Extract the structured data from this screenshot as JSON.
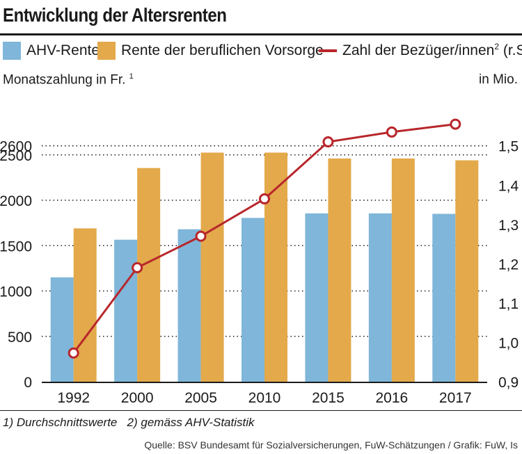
{
  "title": "Entwicklung der Altersrenten",
  "legend": {
    "ahv": "AHV-Rente",
    "bvg": "Rente der beruflichen Vorsorge",
    "count": "Zahl der Bezüger/innen",
    "count_sup": "2",
    "count_suffix": "(r.S.)"
  },
  "left_axis_label": "Monatszahlung in Fr.",
  "left_axis_label_sup": "1",
  "right_axis_label": "in Mio.",
  "footnote": "1) Durchschnittswerte   2) gemäss AHV-Statistik",
  "source": "Quelle: BSV Bundesamt für Sozialversicherungen, FuW-Schätzungen / Grafik: FuW, Is",
  "colors": {
    "ahv": "#7fb6d9",
    "bvg": "#e3a94b",
    "line": "#b8262b",
    "grid": "#1a1a1a"
  },
  "chart_data": {
    "type": "bar",
    "categories": [
      "1992",
      "2000",
      "2005",
      "2010",
      "2015",
      "2016",
      "2017"
    ],
    "series": [
      {
        "name": "AHV-Rente",
        "axis": "left",
        "values": [
          1150,
          1565,
          1680,
          1805,
          1855,
          1855,
          1850
        ]
      },
      {
        "name": "Rente der beruflichen Vorsorge",
        "axis": "left",
        "values": [
          1690,
          2355,
          2525,
          2525,
          2460,
          2460,
          2440
        ]
      },
      {
        "name": "Zahl der Bezüger/innen",
        "type": "line",
        "axis": "right",
        "values": [
          0.973,
          1.19,
          1.27,
          1.365,
          1.51,
          1.535,
          1.555
        ]
      }
    ],
    "y_left": {
      "min": 0,
      "max": 2600,
      "ticks": [
        0,
        500,
        1000,
        1500,
        2000,
        2500,
        2600
      ]
    },
    "y_right": {
      "min": 0.9,
      "max": 1.5,
      "ticks": [
        "0,9",
        "1,0",
        "1,1",
        "1,2",
        "1,3",
        "1,4",
        "1,5"
      ],
      "tick_values": [
        0.9,
        1.0,
        1.1,
        1.2,
        1.3,
        1.4,
        1.5
      ]
    },
    "grid": "dotted-horizontal",
    "legend_position": "top"
  }
}
